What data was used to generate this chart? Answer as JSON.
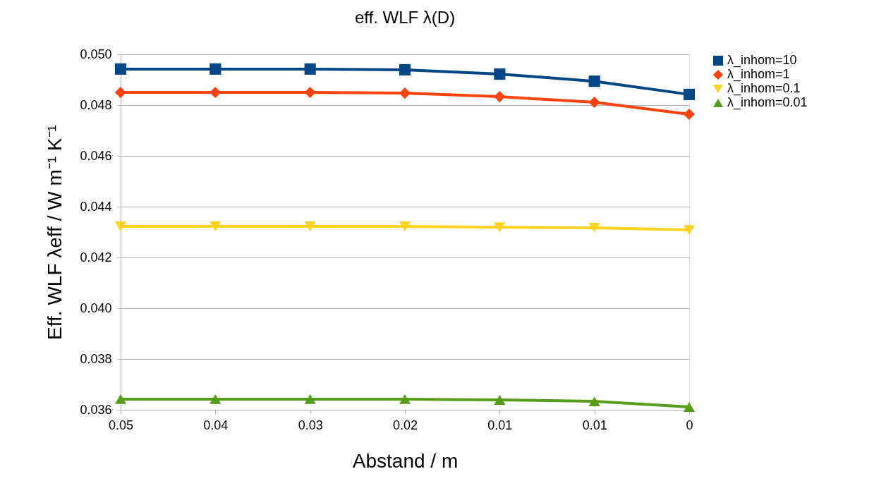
{
  "chart_data": {
    "type": "line",
    "title": "eff. WLF λ(D)",
    "xlabel": "Abstand / m",
    "ylabel": "Eff. WLF λeff / W m⁻¹ K⁻¹",
    "categories": [
      "0.05",
      "0.04",
      "0.03",
      "0.02",
      "0.01",
      "0.01",
      "0"
    ],
    "series": [
      {
        "name": "λ_inhom=10",
        "color": "#004586",
        "marker": "square",
        "values": [
          0.04942,
          0.04942,
          0.04942,
          0.04939,
          0.04922,
          0.04894,
          0.04842
        ]
      },
      {
        "name": "λ_inhom=1",
        "color": "#ff420e",
        "marker": "diamond",
        "values": [
          0.0485,
          0.0485,
          0.0485,
          0.04847,
          0.04833,
          0.04811,
          0.04764
        ]
      },
      {
        "name": "λ_inhom=0.1",
        "color": "#ffd320",
        "marker": "triangle-down",
        "values": [
          0.04322,
          0.04322,
          0.04322,
          0.04322,
          0.04319,
          0.04317,
          0.04308
        ]
      },
      {
        "name": "λ_inhom=0.01",
        "color": "#579d1c",
        "marker": "triangle-up",
        "values": [
          0.03642,
          0.03642,
          0.03642,
          0.03642,
          0.03639,
          0.03633,
          0.03611
        ]
      }
    ],
    "ylim": [
      0.036,
      0.05
    ],
    "yticks": [
      {
        "value": 0.036,
        "label": "0.036"
      },
      {
        "value": 0.038,
        "label": "0.038"
      },
      {
        "value": 0.04,
        "label": "0.040"
      },
      {
        "value": 0.042,
        "label": "0.042"
      },
      {
        "value": 0.044,
        "label": "0.044"
      },
      {
        "value": 0.046,
        "label": "0.046"
      },
      {
        "value": 0.048,
        "label": "0.048"
      },
      {
        "value": 0.05,
        "label": "0.050"
      }
    ],
    "grid": "y",
    "legend": "right",
    "line_style": "solid"
  }
}
